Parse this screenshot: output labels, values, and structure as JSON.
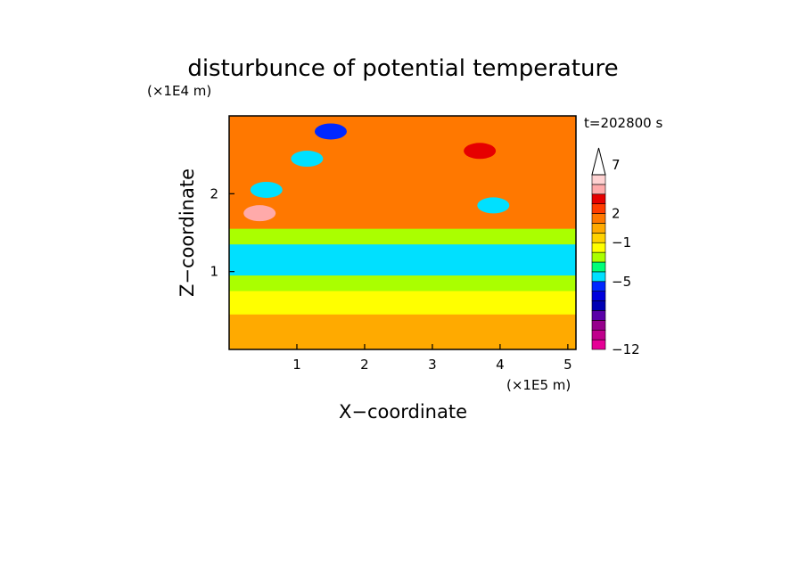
{
  "chart_data": {
    "type": "heatmap",
    "title": "disturbunce of potential temperature",
    "xlabel": "X−coordinate",
    "ylabel": "Z−coordinate",
    "x_unit": "(×1E5 m)",
    "y_unit": "(×1E4 m)",
    "time_label": "t=202800 s",
    "xlim": [
      0,
      5.12
    ],
    "ylim": [
      0,
      3.0
    ],
    "x_ticks": [
      1,
      2,
      3,
      4,
      5
    ],
    "y_ticks": [
      1,
      2
    ],
    "x_tick_labels": [
      "1",
      "2",
      "3",
      "4",
      "5"
    ],
    "y_tick_labels": [
      "1",
      "2"
    ],
    "colorbar": {
      "levels": [
        -12,
        -11,
        -10,
        -9,
        -8,
        -7,
        -6,
        -5,
        -4,
        -3,
        -2,
        -1,
        0,
        1,
        2,
        3,
        4,
        5,
        6,
        7,
        8,
        9,
        10
      ],
      "colors": [
        "#e60096",
        "#c0008c",
        "#96008c",
        "#5a00a8",
        "#0000b4",
        "#0000dc",
        "#0028ff",
        "#00e0ff",
        "#00ff78",
        "#aaff00",
        "#ffff00",
        "#ffd200",
        "#ffaa00",
        "#ff7800",
        "#ff3c00",
        "#e60000",
        "#ffaaaa",
        "#ffd2d2"
      ],
      "labels": [
        "−12",
        "−5",
        "−1",
        "2",
        "7"
      ],
      "extend_max": true
    },
    "grid": false,
    "legend_position": "right",
    "field": {
      "description_bands": [
        {
          "z_range": [
            0.0,
            0.45
          ],
          "value": 0.5
        },
        {
          "z_range": [
            0.45,
            0.75
          ],
          "value": -2
        },
        {
          "z_range": [
            0.75,
            0.95
          ],
          "value": -2.8
        },
        {
          "z_range": [
            0.95,
            1.35
          ],
          "value": -5
        },
        {
          "z_range": [
            1.35,
            1.55
          ],
          "value": -2.8
        },
        {
          "z_range": [
            1.55,
            3.0
          ],
          "value": 1.5
        }
      ],
      "features": [
        {
          "x": 1.5,
          "z": 2.8,
          "value": -6
        },
        {
          "x": 1.15,
          "z": 2.45,
          "value": -5
        },
        {
          "x": 0.55,
          "z": 2.05,
          "value": -5
        },
        {
          "x": 3.9,
          "z": 1.85,
          "value": -5
        },
        {
          "x": 3.7,
          "z": 2.55,
          "value": 3
        },
        {
          "x": 0.45,
          "z": 1.75,
          "value": 4
        }
      ]
    }
  }
}
